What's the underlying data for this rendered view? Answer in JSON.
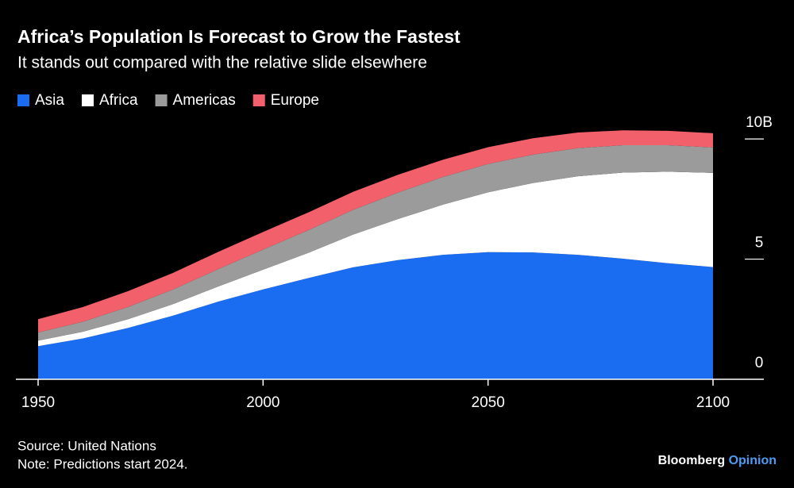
{
  "chart_data": {
    "type": "stacked_area",
    "title": "Africa’s Population Is Forecast to Grow the Fastest",
    "subtitle": "It stands out compared with the relative slide elsewhere",
    "x": [
      1950,
      1960,
      1970,
      1980,
      1990,
      2000,
      2010,
      2020,
      2030,
      2040,
      2050,
      2060,
      2070,
      2080,
      2090,
      2100
    ],
    "series": [
      {
        "name": "Asia",
        "color": "#1a6cf0",
        "values": [
          1.38,
          1.7,
          2.14,
          2.65,
          3.23,
          3.74,
          4.21,
          4.66,
          4.96,
          5.18,
          5.29,
          5.28,
          5.18,
          5.02,
          4.83,
          4.67
        ]
      },
      {
        "name": "Africa",
        "color": "#ffffff",
        "values": [
          0.23,
          0.28,
          0.36,
          0.48,
          0.63,
          0.82,
          1.05,
          1.36,
          1.71,
          2.09,
          2.49,
          2.89,
          3.27,
          3.58,
          3.81,
          3.92
        ]
      },
      {
        "name": "Americas",
        "color": "#9b9b9b",
        "values": [
          0.34,
          0.42,
          0.51,
          0.61,
          0.72,
          0.84,
          0.94,
          1.03,
          1.1,
          1.15,
          1.18,
          1.18,
          1.17,
          1.14,
          1.1,
          1.06
        ]
      },
      {
        "name": "Europe",
        "color": "#f2616b",
        "values": [
          0.55,
          0.61,
          0.66,
          0.69,
          0.72,
          0.73,
          0.74,
          0.75,
          0.74,
          0.72,
          0.7,
          0.68,
          0.65,
          0.62,
          0.6,
          0.59
        ]
      }
    ],
    "xlim": [
      1950,
      2100
    ],
    "xticks": [
      1950,
      2000,
      2050,
      2100
    ],
    "ylim": [
      0,
      10.5
    ],
    "yticks": [
      0,
      5,
      {
        "value": 10,
        "label": "10B"
      }
    ],
    "source": "Source: United Nations",
    "note": "Note: Predictions start 2024.",
    "brand": "Bloomberg",
    "brand_sub": "Opinion"
  }
}
